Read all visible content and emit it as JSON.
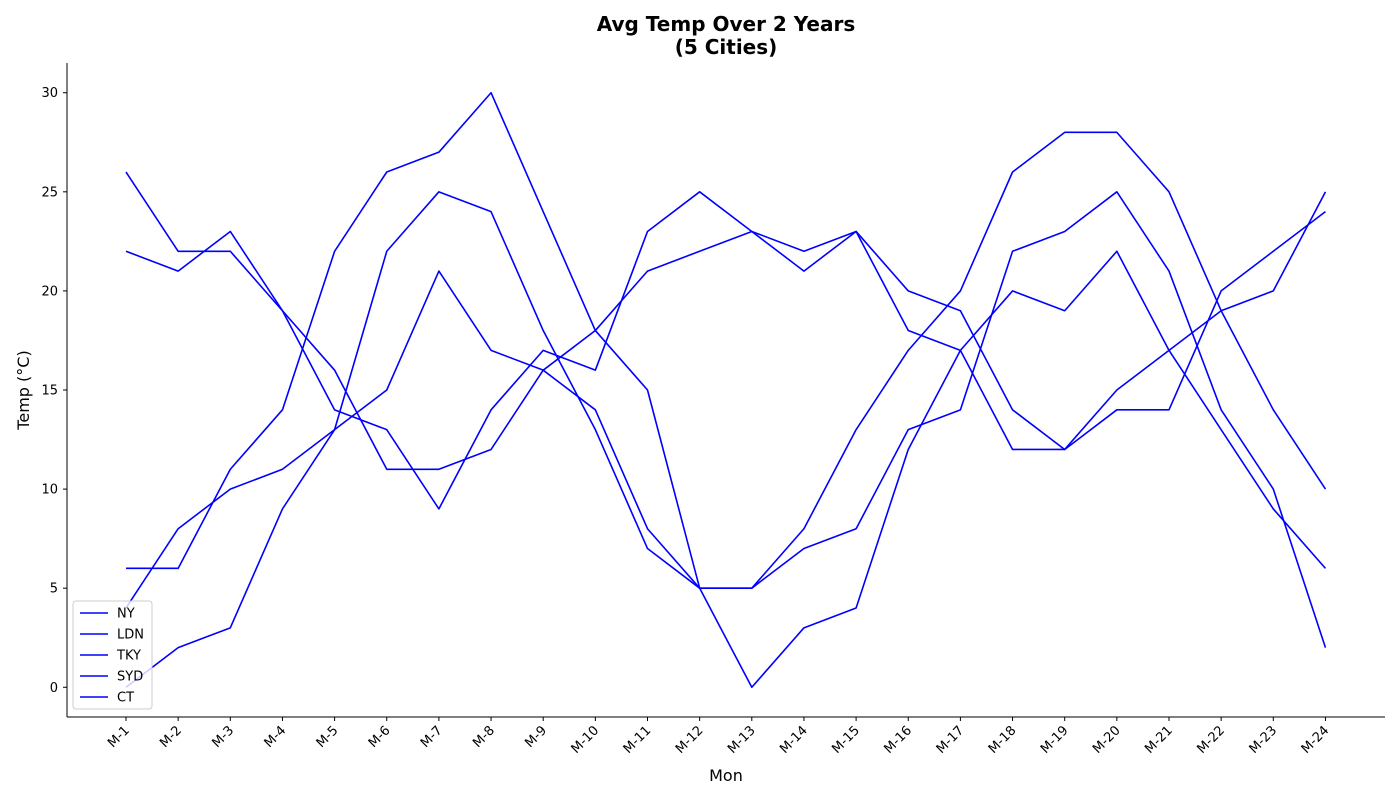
{
  "chart_data": {
    "type": "line",
    "title": "Avg Temp Over 2 Years",
    "subtitle": "(5 Cities)",
    "xlabel": "Mon",
    "ylabel": "Temp (°C)",
    "ylim": [
      -1.5,
      31.5
    ],
    "yticks": [
      0,
      5,
      10,
      15,
      20,
      25,
      30
    ],
    "grid": false,
    "legend_position": "bottom-left",
    "line_color": "#0000ff",
    "categories": [
      "M-1",
      "M-2",
      "M-3",
      "M-4",
      "M-5",
      "M-6",
      "M-7",
      "M-8",
      "M-9",
      "M-10",
      "M-11",
      "M-12",
      "M-13",
      "M-14",
      "M-15",
      "M-16",
      "M-17",
      "M-18",
      "M-19",
      "M-20",
      "M-21",
      "M-22",
      "M-23",
      "M-24"
    ],
    "series": [
      {
        "name": "NY",
        "values": [
          4,
          8,
          10,
          11,
          13,
          15,
          21,
          17,
          16,
          14,
          8,
          5,
          5,
          8,
          13,
          17,
          20,
          26,
          28,
          28,
          25,
          19,
          14,
          10
        ]
      },
      {
        "name": "LDN",
        "values": [
          6,
          6,
          11,
          14,
          22,
          26,
          27,
          30,
          24,
          18,
          15,
          5,
          0,
          3,
          4,
          12,
          17,
          20,
          19,
          22,
          17,
          13,
          9,
          6
        ]
      },
      {
        "name": "TKY",
        "values": [
          22,
          21,
          23,
          19,
          16,
          11,
          11,
          12,
          16,
          18,
          21,
          22,
          23,
          22,
          23,
          18,
          17,
          12,
          12,
          14,
          14,
          20,
          22,
          24
        ]
      },
      {
        "name": "SYD",
        "values": [
          26,
          22,
          22,
          19,
          14,
          13,
          9,
          14,
          17,
          16,
          23,
          25,
          23,
          21,
          23,
          20,
          19,
          14,
          12,
          15,
          17,
          19,
          20,
          25
        ]
      },
      {
        "name": "CT",
        "values": [
          0,
          2,
          3,
          9,
          13,
          22,
          25,
          24,
          18,
          13,
          7,
          5,
          5,
          7,
          8,
          13,
          14,
          22,
          23,
          25,
          21,
          14,
          10,
          2
        ]
      }
    ]
  }
}
